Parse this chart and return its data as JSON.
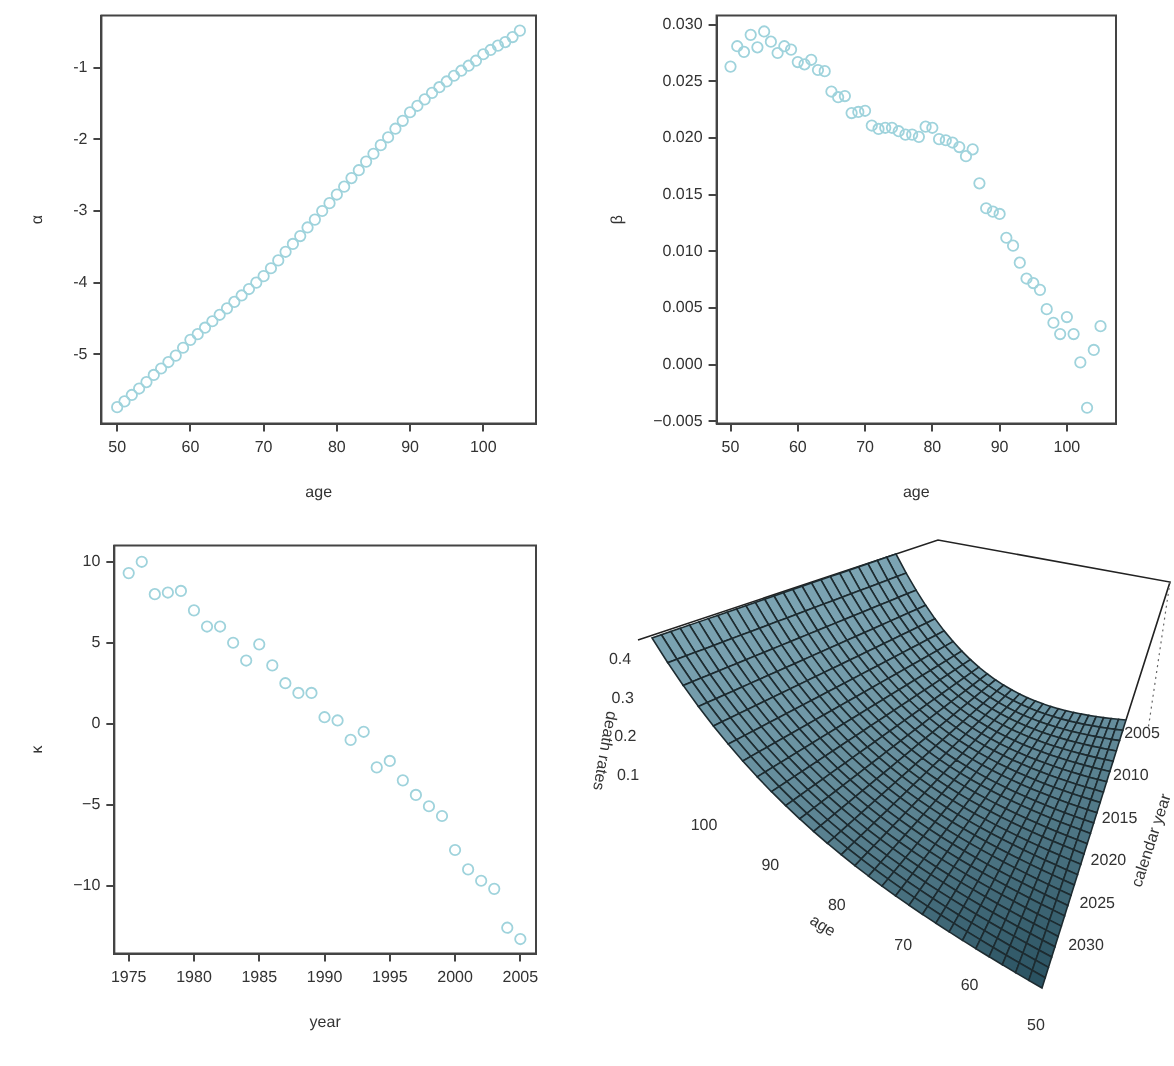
{
  "chart_data": [
    {
      "type": "scatter",
      "xlabel": "age",
      "ylabel": "α",
      "marker": "circle",
      "color": "#9fd3dc",
      "xlim": [
        47.85,
        107.2
      ],
      "xticks": [
        50,
        60,
        70,
        80,
        90,
        100
      ],
      "ylim": [
        -5.97,
        -0.27
      ],
      "yticks": [
        -5,
        -4,
        -3,
        -2,
        -1
      ],
      "x": [
        50,
        51,
        52,
        53,
        54,
        55,
        56,
        57,
        58,
        59,
        60,
        61,
        62,
        63,
        64,
        65,
        66,
        67,
        68,
        69,
        70,
        71,
        72,
        73,
        74,
        75,
        76,
        77,
        78,
        79,
        80,
        81,
        82,
        83,
        84,
        85,
        86,
        87,
        88,
        89,
        90,
        91,
        92,
        93,
        94,
        95,
        96,
        97,
        98,
        99,
        100,
        101,
        102,
        103,
        104,
        105
      ],
      "values": [
        -5.74,
        -5.66,
        -5.57,
        -5.48,
        -5.39,
        -5.29,
        -5.2,
        -5.11,
        -5.02,
        -4.91,
        -4.8,
        -4.72,
        -4.63,
        -4.54,
        -4.45,
        -4.36,
        -4.27,
        -4.18,
        -4.09,
        -4.0,
        -3.91,
        -3.8,
        -3.69,
        -3.57,
        -3.46,
        -3.35,
        -3.23,
        -3.12,
        -3.0,
        -2.89,
        -2.77,
        -2.66,
        -2.54,
        -2.43,
        -2.31,
        -2.2,
        -2.08,
        -1.97,
        -1.85,
        -1.74,
        -1.62,
        -1.53,
        -1.44,
        -1.35,
        -1.27,
        -1.19,
        -1.11,
        -1.04,
        -0.97,
        -0.9,
        -0.81,
        -0.75,
        -0.69,
        -0.64,
        -0.57,
        -0.48
      ]
    },
    {
      "type": "scatter",
      "xlabel": "age",
      "ylabel": "β",
      "marker": "circle",
      "color": "#9fd3dc",
      "xlim": [
        47.93,
        107.3
      ],
      "xticks": [
        50,
        60,
        70,
        80,
        90,
        100
      ],
      "ylim": [
        -0.0052,
        0.0308
      ],
      "yticks": [
        {
          "value": -0.005,
          "label": "−0.005"
        },
        {
          "value": 0,
          "label": "0.000"
        },
        {
          "value": 0.005,
          "label": "0.005"
        },
        {
          "value": 0.01,
          "label": "0.010"
        },
        {
          "value": 0.015,
          "label": "0.015"
        },
        {
          "value": 0.02,
          "label": "0.020"
        },
        {
          "value": 0.025,
          "label": "0.025"
        },
        {
          "value": 0.03,
          "label": "0.030"
        }
      ],
      "x": [
        50,
        51,
        52,
        53,
        54,
        55,
        56,
        57,
        58,
        59,
        60,
        61,
        62,
        63,
        64,
        65,
        66,
        67,
        68,
        69,
        70,
        71,
        72,
        73,
        74,
        75,
        76,
        77,
        78,
        79,
        80,
        81,
        82,
        83,
        84,
        85,
        86,
        87,
        88,
        89,
        90,
        91,
        92,
        93,
        94,
        95,
        96,
        97,
        98,
        99,
        100,
        101,
        102,
        103,
        104,
        105
      ],
      "values": [
        0.0263,
        0.0281,
        0.0276,
        0.0291,
        0.028,
        0.0294,
        0.0285,
        0.0275,
        0.0281,
        0.0278,
        0.0267,
        0.0265,
        0.0269,
        0.026,
        0.0259,
        0.0241,
        0.0236,
        0.0237,
        0.0222,
        0.0223,
        0.0224,
        0.0211,
        0.0208,
        0.0209,
        0.0209,
        0.0206,
        0.0203,
        0.0203,
        0.0201,
        0.021,
        0.0209,
        0.0199,
        0.0198,
        0.0196,
        0.0192,
        0.0184,
        0.019,
        0.016,
        0.0138,
        0.0135,
        0.0133,
        0.0112,
        0.0105,
        0.009,
        0.0076,
        0.0072,
        0.0066,
        0.0049,
        0.0037,
        0.0027,
        0.0042,
        0.0027,
        0.0002,
        -0.0038,
        0.0013,
        0.0034
      ]
    },
    {
      "type": "scatter",
      "xlabel": "year",
      "ylabel": "κ",
      "marker": "circle",
      "color": "#9fd3dc",
      "xlim": [
        1973.9,
        2006.2
      ],
      "xticks": [
        1975,
        1980,
        1985,
        1990,
        1995,
        2000,
        2005
      ],
      "ylim": [
        -14.2,
        11.0
      ],
      "yticks": [
        {
          "value": -10,
          "label": "−10"
        },
        {
          "value": -5,
          "label": "−5"
        },
        0,
        5,
        10
      ],
      "x": [
        1975,
        1976,
        1977,
        1978,
        1979,
        1980,
        1981,
        1982,
        1983,
        1984,
        1985,
        1986,
        1987,
        1988,
        1989,
        1990,
        1991,
        1992,
        1993,
        1994,
        1995,
        1996,
        1997,
        1998,
        1999,
        2000,
        2001,
        2002,
        2003,
        2004,
        2005
      ],
      "values": [
        9.3,
        10.0,
        8.0,
        8.1,
        8.2,
        7.0,
        6.0,
        6.0,
        5.0,
        3.9,
        4.9,
        3.6,
        2.5,
        1.9,
        1.9,
        0.4,
        0.2,
        -1.0,
        -0.5,
        -2.7,
        -2.3,
        -3.5,
        -4.4,
        -5.1,
        -5.7,
        -7.8,
        -9.0,
        -9.7,
        -10.2,
        -12.6,
        -13.3
      ]
    },
    {
      "type": "other",
      "xlabel": "age",
      "ylabel": "death rates",
      "y2label": "calendar year",
      "annotations": [
        "50",
        "60",
        "70",
        "80",
        "90",
        "100",
        "0.1",
        "0.2",
        "0.3",
        "0.4",
        "2005",
        "2010",
        "2015",
        "2020",
        "2025",
        "2030"
      ]
    }
  ]
}
